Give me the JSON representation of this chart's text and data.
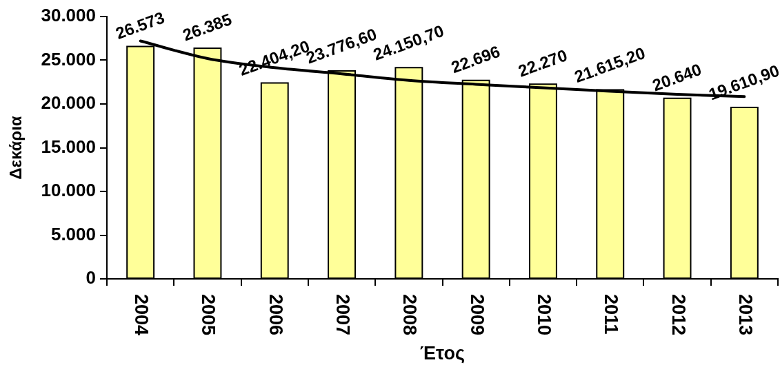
{
  "chart_data": {
    "type": "bar",
    "xlabel": "Έτος",
    "ylabel": "Δεκάρια",
    "categories": [
      "2004",
      "2005",
      "2006",
      "2007",
      "2008",
      "2009",
      "2010",
      "2011",
      "2012",
      "2013"
    ],
    "series": [
      {
        "color": "#ffff99",
        "values": [
          26573,
          26385,
          22404.2,
          23776.6,
          24150.7,
          22696,
          22270,
          21615.2,
          20640,
          19610.9
        ],
        "value_labels": [
          "26.573",
          "26.385",
          "22.404,20",
          "23.776,60",
          "24.150,70",
          "22.696",
          "22.270",
          "21.615,20",
          "20.640",
          "19.610,90"
        ]
      },
      {
        "type": "line",
        "color": "#000000",
        "marker": "none",
        "values": [
          27200,
          25200,
          24150,
          23450,
          22700,
          22250,
          21850,
          21450,
          21100,
          20850
        ]
      }
    ],
    "ylim": [
      0,
      30000
    ],
    "yticks": [
      0,
      {
        "value": 5000,
        "label": "5.000"
      },
      {
        "value": 10000,
        "label": "10.000"
      },
      {
        "value": 15000,
        "label": "15.000"
      },
      {
        "value": 20000,
        "label": "20.000"
      },
      {
        "value": 25000,
        "label": "25.000"
      },
      {
        "value": 30000,
        "label": "30.000"
      }
    ]
  }
}
